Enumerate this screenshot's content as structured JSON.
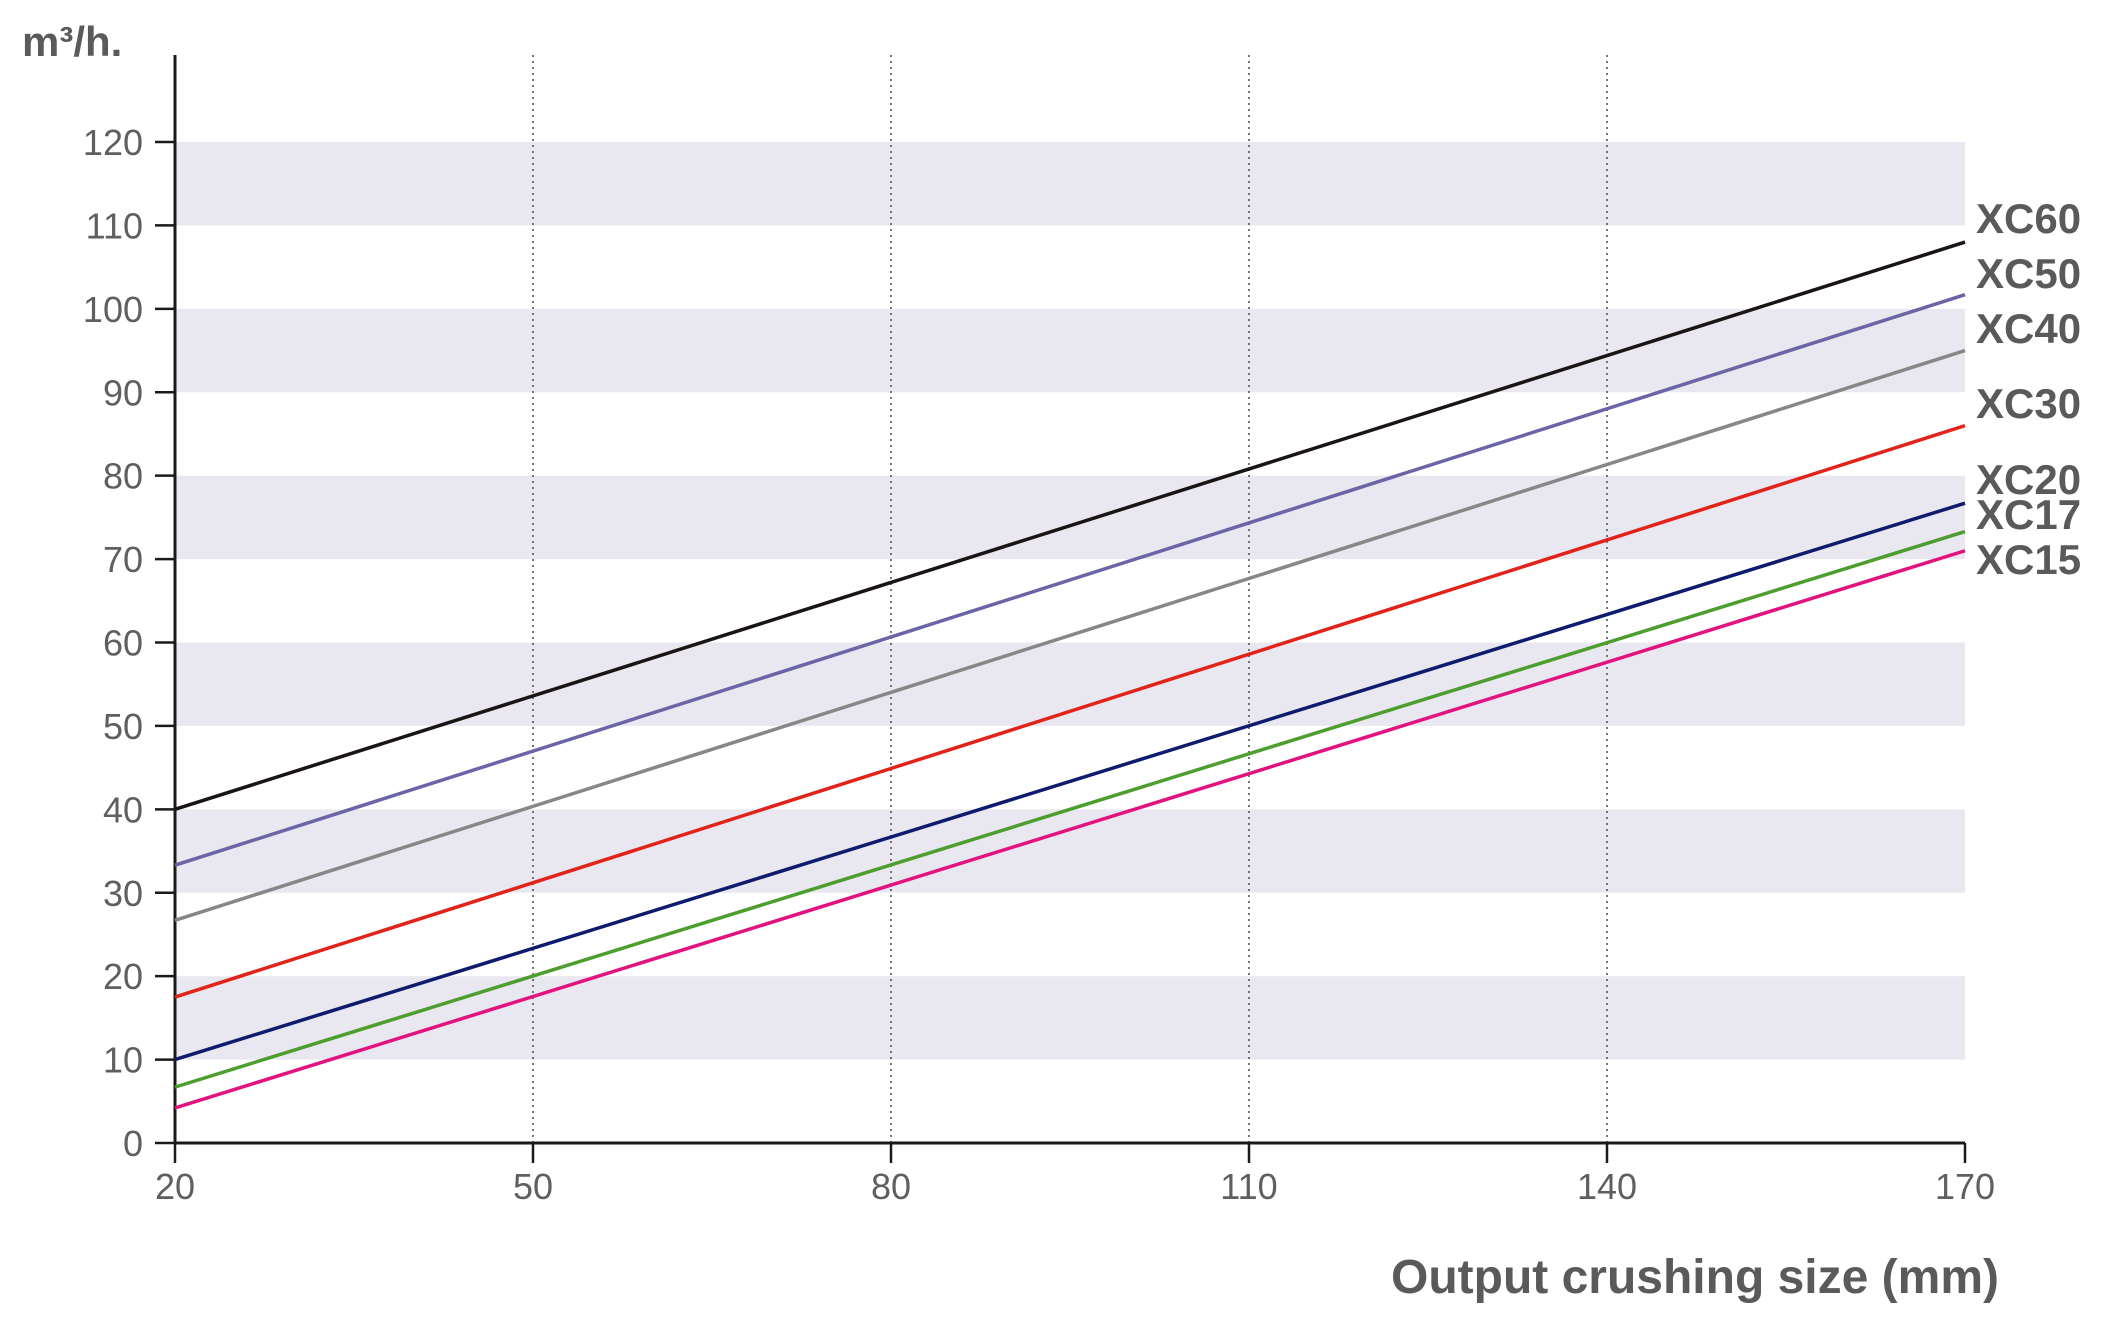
{
  "chart_data": {
    "type": "line",
    "title": "",
    "xlabel": "Output crushing size (mm)",
    "ylabel": "m³/h.",
    "xlim": [
      20,
      170
    ],
    "ylim": [
      0,
      120
    ],
    "x_ticks": [
      "20",
      "50",
      "80",
      "110",
      "140",
      "170"
    ],
    "y_ticks": [
      "0",
      "10",
      "20",
      "30",
      "40",
      "50",
      "60",
      "70",
      "80",
      "90",
      "100",
      "110",
      "120"
    ],
    "grid": {
      "vertical_dotted_lines_at_x": [
        50,
        80,
        110,
        140
      ],
      "horizontal_bands": [
        [
          10,
          20
        ],
        [
          30,
          40
        ],
        [
          50,
          60
        ],
        [
          70,
          80
        ],
        [
          90,
          100
        ],
        [
          110,
          120
        ]
      ],
      "band_color": "#e9e8f0"
    },
    "axis_color": "#1a1a1a",
    "legend": "inline labels at right end of lines",
    "series": [
      {
        "name": "XC60",
        "color": "#1a1414",
        "x": [
          20,
          170
        ],
        "y": [
          40,
          108
        ]
      },
      {
        "name": "XC50",
        "color": "#6b64a6",
        "x": [
          20,
          170
        ],
        "y": [
          33.3,
          101.7
        ]
      },
      {
        "name": "XC40",
        "color": "#878787",
        "x": [
          20,
          170
        ],
        "y": [
          26.7,
          95
        ]
      },
      {
        "name": "XC30",
        "color": "#e2231a",
        "x": [
          20,
          170
        ],
        "y": [
          17.5,
          86
        ]
      },
      {
        "name": "XC20",
        "color": "#0f1c6e",
        "x": [
          20,
          170
        ],
        "y": [
          10,
          76.7
        ]
      },
      {
        "name": "XC17",
        "color": "#4e9e2f",
        "x": [
          20,
          170
        ],
        "y": [
          6.7,
          73.3
        ]
      },
      {
        "name": "XC15",
        "color": "#e2127f",
        "x": [
          20,
          170
        ],
        "y": [
          4.2,
          71
        ]
      }
    ]
  }
}
